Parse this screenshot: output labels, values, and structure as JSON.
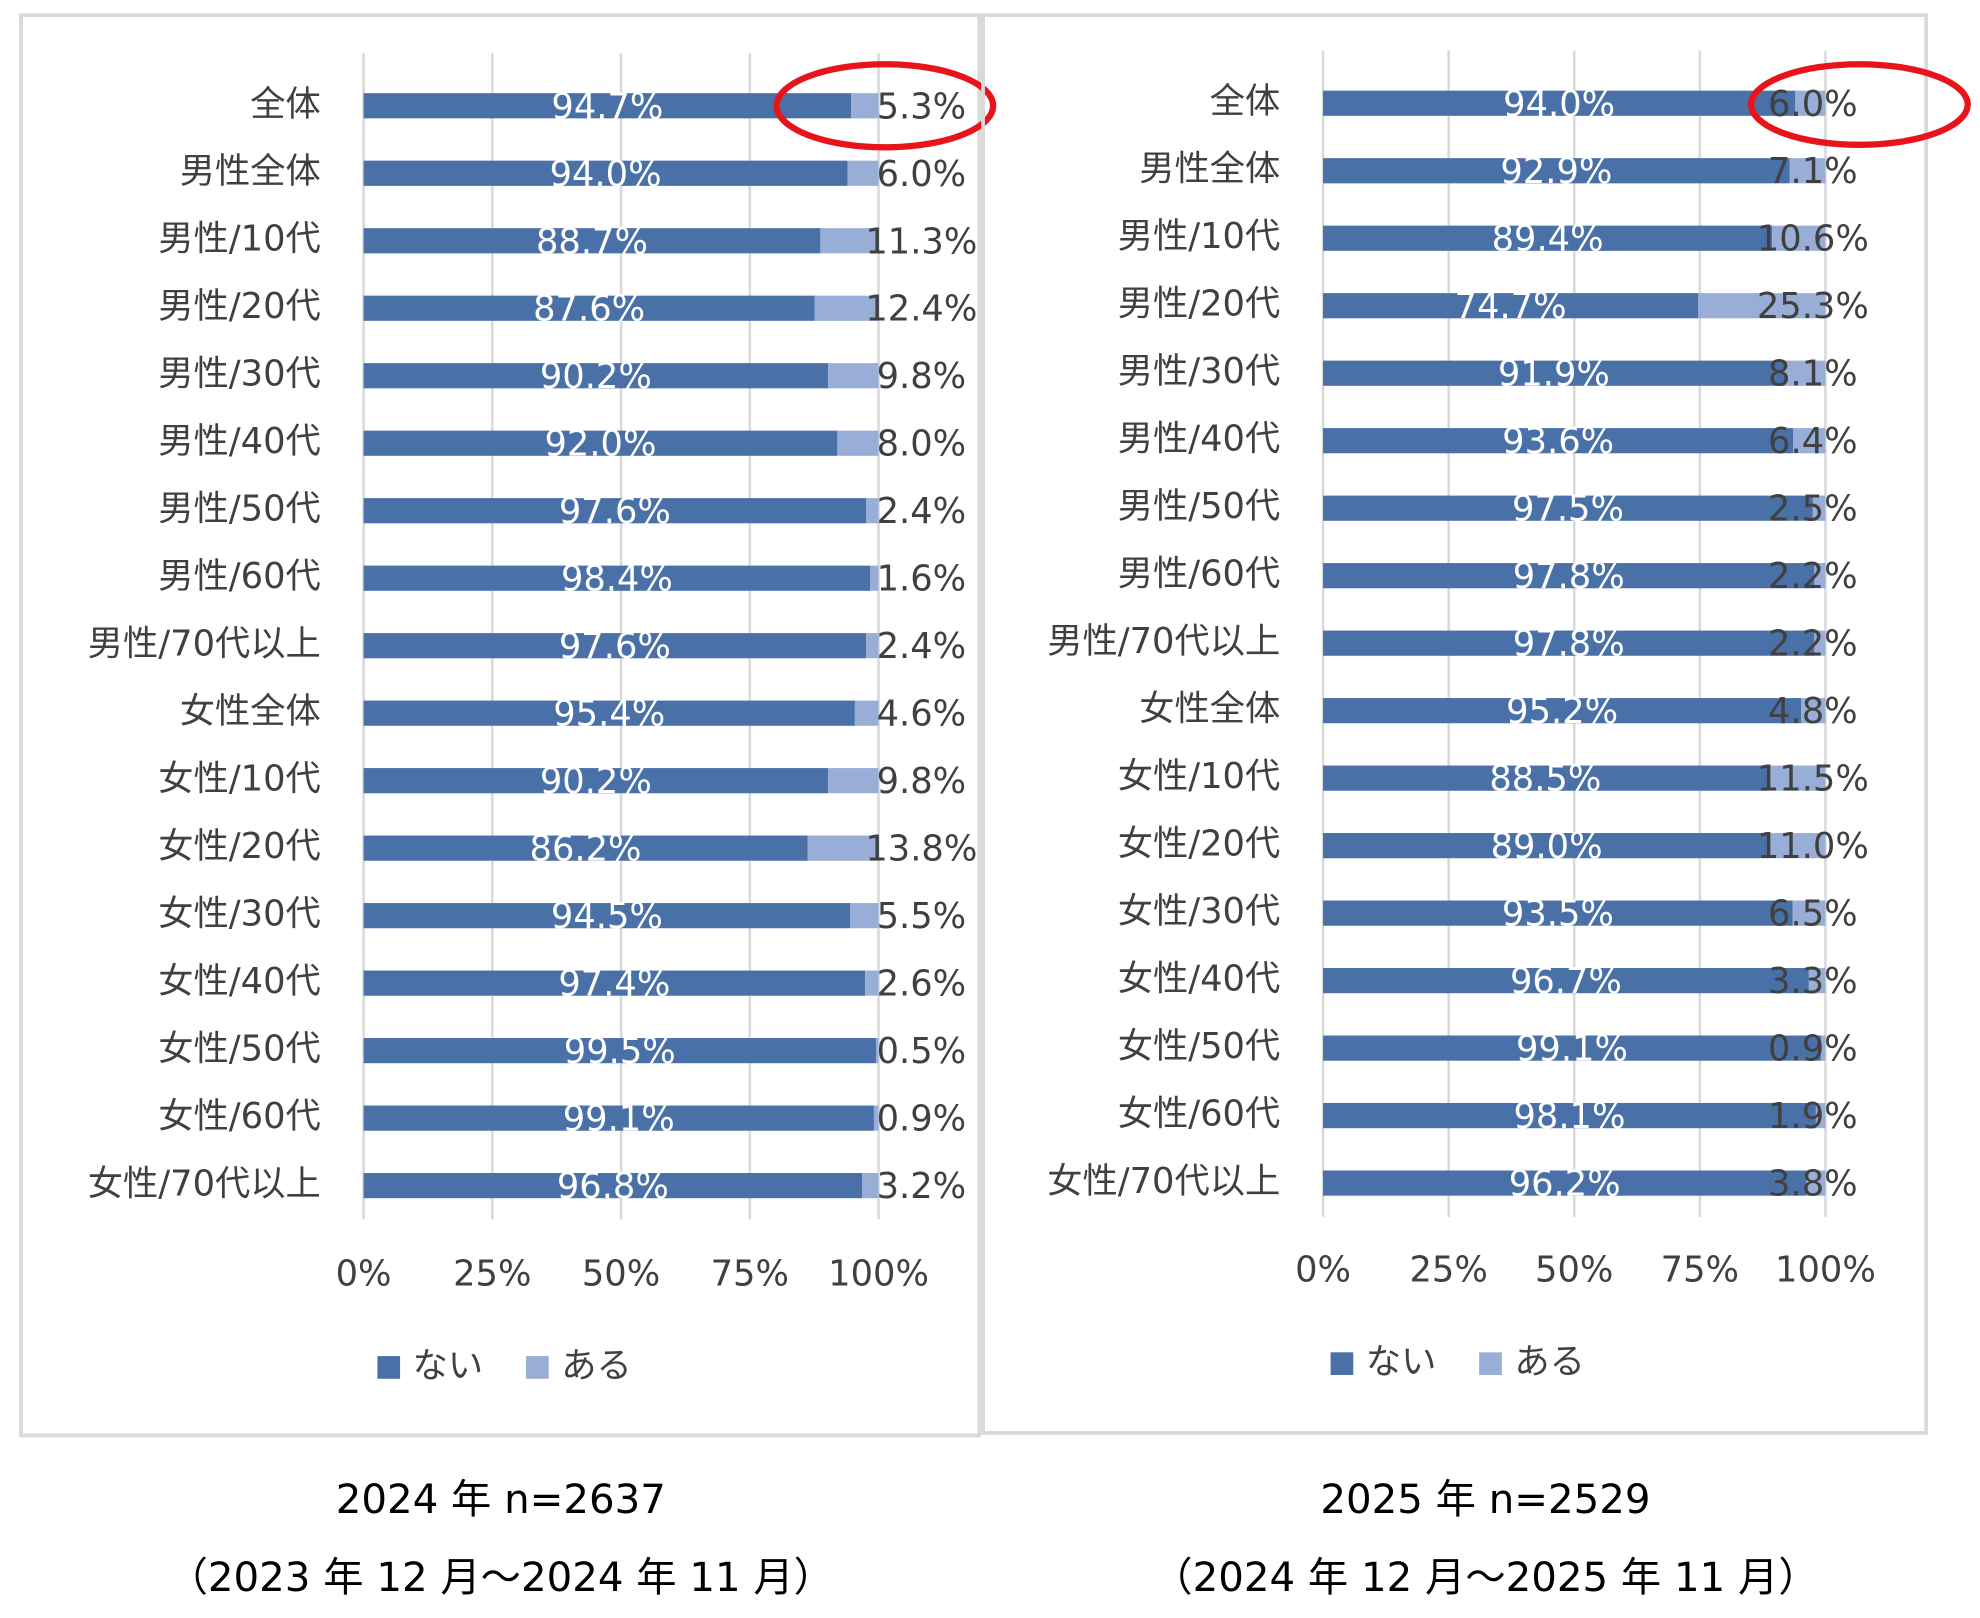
{
  "chart_data": [
    {
      "type": "bar",
      "orientation": "horizontal",
      "stacked": true,
      "categories": [
        "全体",
        "男性全体",
        "男性/10代",
        "男性/20代",
        "男性/30代",
        "男性/40代",
        "男性/50代",
        "男性/60代",
        "男性/70代以上",
        "女性全体",
        "女性/10代",
        "女性/20代",
        "女性/30代",
        "女性/40代",
        "女性/50代",
        "女性/60代",
        "女性/70代以上"
      ],
      "series": [
        {
          "name": "ない",
          "color": "#4a70a8",
          "values": [
            94.7,
            94.0,
            88.7,
            87.6,
            90.2,
            92.0,
            97.6,
            98.4,
            97.6,
            95.4,
            90.2,
            86.2,
            94.5,
            97.4,
            99.5,
            99.1,
            96.8
          ],
          "value_labels": [
            "94.7%",
            "94.0%",
            "88.7%",
            "87.6%",
            "90.2%",
            "92.0%",
            "97.6%",
            "98.4%",
            "97.6%",
            "95.4%",
            "90.2%",
            "86.2%",
            "94.5%",
            "97.4%",
            "99.5%",
            "99.1%",
            "96.8%"
          ]
        },
        {
          "name": "ある",
          "color": "#98aed6",
          "values": [
            5.3,
            6.0,
            11.3,
            12.4,
            9.8,
            8.0,
            2.4,
            1.6,
            2.4,
            4.6,
            9.8,
            13.8,
            5.5,
            2.6,
            0.5,
            0.9,
            3.2
          ],
          "value_labels": [
            "5.3%",
            "6.0%",
            "11.3%",
            "12.4%",
            "9.8%",
            "8.0%",
            "2.4%",
            "1.6%",
            "2.4%",
            "4.6%",
            "9.8%",
            "13.8%",
            "5.5%",
            "2.6%",
            "0.5%",
            "0.9%",
            "3.2%"
          ]
        }
      ],
      "xlim": [
        0,
        100
      ],
      "xticks": [
        {
          "value": 0,
          "label": "0%"
        },
        {
          "value": 25,
          "label": "25%"
        },
        {
          "value": 50,
          "label": "50%"
        },
        {
          "value": 75,
          "label": "75%"
        },
        {
          "value": 100,
          "label": "100%"
        }
      ],
      "grid": true,
      "legend": "bottom",
      "caption": [
        "2024 年 n=2637",
        "（2023 年 12 月～2024 年 11 月）"
      ]
    },
    {
      "type": "bar",
      "orientation": "horizontal",
      "stacked": true,
      "categories": [
        "全体",
        "男性全体",
        "男性/10代",
        "男性/20代",
        "男性/30代",
        "男性/40代",
        "男性/50代",
        "男性/60代",
        "男性/70代以上",
        "女性全体",
        "女性/10代",
        "女性/20代",
        "女性/30代",
        "女性/40代",
        "女性/50代",
        "女性/60代",
        "女性/70代以上"
      ],
      "series": [
        {
          "name": "ない",
          "color": "#4a70a8",
          "values": [
            94.0,
            92.9,
            89.4,
            74.7,
            91.9,
            93.6,
            97.5,
            97.8,
            97.8,
            95.2,
            88.5,
            89.0,
            93.5,
            96.7,
            99.1,
            98.1,
            96.2
          ],
          "value_labels": [
            "94.0%",
            "92.9%",
            "89.4%",
            "74.7%",
            "91.9%",
            "93.6%",
            "97.5%",
            "97.8%",
            "97.8%",
            "95.2%",
            "88.5%",
            "89.0%",
            "93.5%",
            "96.7%",
            "99.1%",
            "98.1%",
            "96.2%"
          ]
        },
        {
          "name": "ある",
          "color": "#98aed6",
          "values": [
            6.0,
            7.1,
            10.6,
            25.3,
            8.1,
            6.4,
            2.5,
            2.2,
            2.2,
            4.8,
            11.5,
            11.0,
            6.5,
            3.3,
            0.9,
            1.9,
            3.8
          ],
          "value_labels": [
            "6.0%",
            "7.1%",
            "10.6%",
            "25.3%",
            "8.1%",
            "6.4%",
            "2.5%",
            "2.2%",
            "2.2%",
            "4.8%",
            "11.5%",
            "11.0%",
            "6.5%",
            "3.3%",
            "0.9%",
            "1.9%",
            "3.8%"
          ]
        }
      ],
      "xlim": [
        0,
        100
      ],
      "xticks": [
        {
          "value": 0,
          "label": "0%"
        },
        {
          "value": 25,
          "label": "25%"
        },
        {
          "value": 50,
          "label": "50%"
        },
        {
          "value": 75,
          "label": "75%"
        },
        {
          "value": 100,
          "label": "100%"
        }
      ],
      "grid": true,
      "legend": "bottom",
      "caption": [
        "2025 年 n=2529",
        "（2024 年 12 月～2025 年 11 月）"
      ]
    }
  ]
}
